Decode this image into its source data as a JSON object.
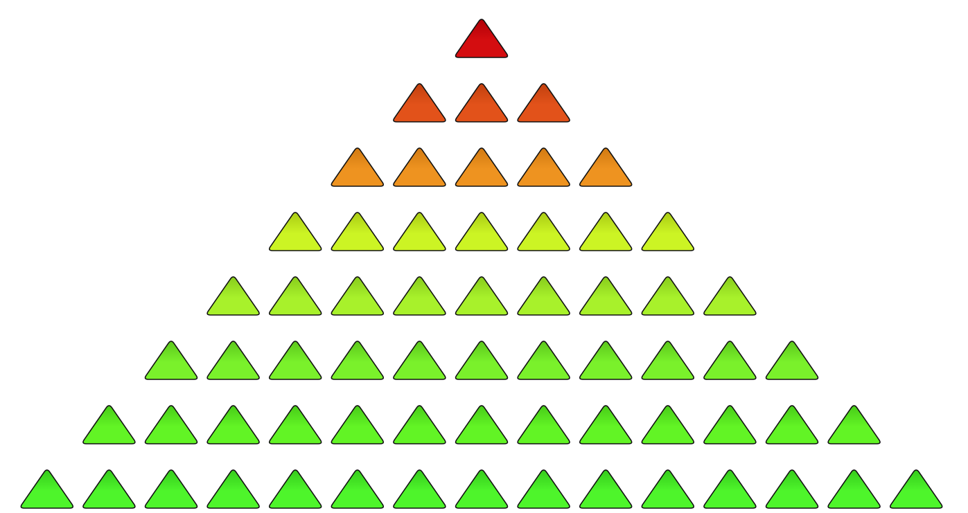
{
  "pyramid": {
    "rows": [
      {
        "count": 1,
        "color": "#d40d10",
        "shade": "#b00008"
      },
      {
        "count": 3,
        "color": "#e2521a",
        "shade": "#c2400e"
      },
      {
        "count": 5,
        "color": "#ee9320",
        "shade": "#d27a12"
      },
      {
        "count": 7,
        "color": "#ccf424",
        "shade": "#aacb14"
      },
      {
        "count": 9,
        "color": "#a8f12b",
        "shade": "#88cc1c"
      },
      {
        "count": 11,
        "color": "#7af12b",
        "shade": "#5cc81c"
      },
      {
        "count": 13,
        "color": "#62f425",
        "shade": "#48cc18"
      },
      {
        "count": 15,
        "color": "#4ef52b",
        "shade": "#36cc1c"
      }
    ],
    "outline_color": "#111111",
    "background": "#ffffff"
  }
}
